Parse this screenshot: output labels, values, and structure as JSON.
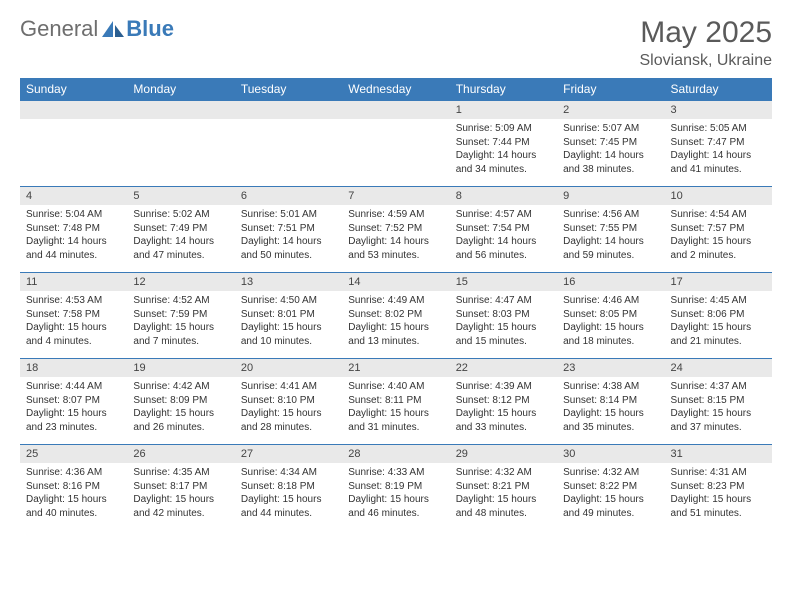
{
  "logo": {
    "general": "General",
    "blue": "Blue"
  },
  "title": "May 2025",
  "location": "Sloviansk, Ukraine",
  "colors": {
    "header_bg": "#3a7ab8",
    "header_text": "#ffffff",
    "daynum_bg": "#e9e9e9",
    "text": "#333333",
    "border": "#3a7ab8"
  },
  "weekdays": [
    "Sunday",
    "Monday",
    "Tuesday",
    "Wednesday",
    "Thursday",
    "Friday",
    "Saturday"
  ],
  "weeks": [
    [
      {
        "blank": true
      },
      {
        "blank": true
      },
      {
        "blank": true
      },
      {
        "blank": true
      },
      {
        "n": "1",
        "sr": "Sunrise: 5:09 AM",
        "ss": "Sunset: 7:44 PM",
        "dl": "Daylight: 14 hours and 34 minutes."
      },
      {
        "n": "2",
        "sr": "Sunrise: 5:07 AM",
        "ss": "Sunset: 7:45 PM",
        "dl": "Daylight: 14 hours and 38 minutes."
      },
      {
        "n": "3",
        "sr": "Sunrise: 5:05 AM",
        "ss": "Sunset: 7:47 PM",
        "dl": "Daylight: 14 hours and 41 minutes."
      }
    ],
    [
      {
        "n": "4",
        "sr": "Sunrise: 5:04 AM",
        "ss": "Sunset: 7:48 PM",
        "dl": "Daylight: 14 hours and 44 minutes."
      },
      {
        "n": "5",
        "sr": "Sunrise: 5:02 AM",
        "ss": "Sunset: 7:49 PM",
        "dl": "Daylight: 14 hours and 47 minutes."
      },
      {
        "n": "6",
        "sr": "Sunrise: 5:01 AM",
        "ss": "Sunset: 7:51 PM",
        "dl": "Daylight: 14 hours and 50 minutes."
      },
      {
        "n": "7",
        "sr": "Sunrise: 4:59 AM",
        "ss": "Sunset: 7:52 PM",
        "dl": "Daylight: 14 hours and 53 minutes."
      },
      {
        "n": "8",
        "sr": "Sunrise: 4:57 AM",
        "ss": "Sunset: 7:54 PM",
        "dl": "Daylight: 14 hours and 56 minutes."
      },
      {
        "n": "9",
        "sr": "Sunrise: 4:56 AM",
        "ss": "Sunset: 7:55 PM",
        "dl": "Daylight: 14 hours and 59 minutes."
      },
      {
        "n": "10",
        "sr": "Sunrise: 4:54 AM",
        "ss": "Sunset: 7:57 PM",
        "dl": "Daylight: 15 hours and 2 minutes."
      }
    ],
    [
      {
        "n": "11",
        "sr": "Sunrise: 4:53 AM",
        "ss": "Sunset: 7:58 PM",
        "dl": "Daylight: 15 hours and 4 minutes."
      },
      {
        "n": "12",
        "sr": "Sunrise: 4:52 AM",
        "ss": "Sunset: 7:59 PM",
        "dl": "Daylight: 15 hours and 7 minutes."
      },
      {
        "n": "13",
        "sr": "Sunrise: 4:50 AM",
        "ss": "Sunset: 8:01 PM",
        "dl": "Daylight: 15 hours and 10 minutes."
      },
      {
        "n": "14",
        "sr": "Sunrise: 4:49 AM",
        "ss": "Sunset: 8:02 PM",
        "dl": "Daylight: 15 hours and 13 minutes."
      },
      {
        "n": "15",
        "sr": "Sunrise: 4:47 AM",
        "ss": "Sunset: 8:03 PM",
        "dl": "Daylight: 15 hours and 15 minutes."
      },
      {
        "n": "16",
        "sr": "Sunrise: 4:46 AM",
        "ss": "Sunset: 8:05 PM",
        "dl": "Daylight: 15 hours and 18 minutes."
      },
      {
        "n": "17",
        "sr": "Sunrise: 4:45 AM",
        "ss": "Sunset: 8:06 PM",
        "dl": "Daylight: 15 hours and 21 minutes."
      }
    ],
    [
      {
        "n": "18",
        "sr": "Sunrise: 4:44 AM",
        "ss": "Sunset: 8:07 PM",
        "dl": "Daylight: 15 hours and 23 minutes."
      },
      {
        "n": "19",
        "sr": "Sunrise: 4:42 AM",
        "ss": "Sunset: 8:09 PM",
        "dl": "Daylight: 15 hours and 26 minutes."
      },
      {
        "n": "20",
        "sr": "Sunrise: 4:41 AM",
        "ss": "Sunset: 8:10 PM",
        "dl": "Daylight: 15 hours and 28 minutes."
      },
      {
        "n": "21",
        "sr": "Sunrise: 4:40 AM",
        "ss": "Sunset: 8:11 PM",
        "dl": "Daylight: 15 hours and 31 minutes."
      },
      {
        "n": "22",
        "sr": "Sunrise: 4:39 AM",
        "ss": "Sunset: 8:12 PM",
        "dl": "Daylight: 15 hours and 33 minutes."
      },
      {
        "n": "23",
        "sr": "Sunrise: 4:38 AM",
        "ss": "Sunset: 8:14 PM",
        "dl": "Daylight: 15 hours and 35 minutes."
      },
      {
        "n": "24",
        "sr": "Sunrise: 4:37 AM",
        "ss": "Sunset: 8:15 PM",
        "dl": "Daylight: 15 hours and 37 minutes."
      }
    ],
    [
      {
        "n": "25",
        "sr": "Sunrise: 4:36 AM",
        "ss": "Sunset: 8:16 PM",
        "dl": "Daylight: 15 hours and 40 minutes."
      },
      {
        "n": "26",
        "sr": "Sunrise: 4:35 AM",
        "ss": "Sunset: 8:17 PM",
        "dl": "Daylight: 15 hours and 42 minutes."
      },
      {
        "n": "27",
        "sr": "Sunrise: 4:34 AM",
        "ss": "Sunset: 8:18 PM",
        "dl": "Daylight: 15 hours and 44 minutes."
      },
      {
        "n": "28",
        "sr": "Sunrise: 4:33 AM",
        "ss": "Sunset: 8:19 PM",
        "dl": "Daylight: 15 hours and 46 minutes."
      },
      {
        "n": "29",
        "sr": "Sunrise: 4:32 AM",
        "ss": "Sunset: 8:21 PM",
        "dl": "Daylight: 15 hours and 48 minutes."
      },
      {
        "n": "30",
        "sr": "Sunrise: 4:32 AM",
        "ss": "Sunset: 8:22 PM",
        "dl": "Daylight: 15 hours and 49 minutes."
      },
      {
        "n": "31",
        "sr": "Sunrise: 4:31 AM",
        "ss": "Sunset: 8:23 PM",
        "dl": "Daylight: 15 hours and 51 minutes."
      }
    ]
  ]
}
